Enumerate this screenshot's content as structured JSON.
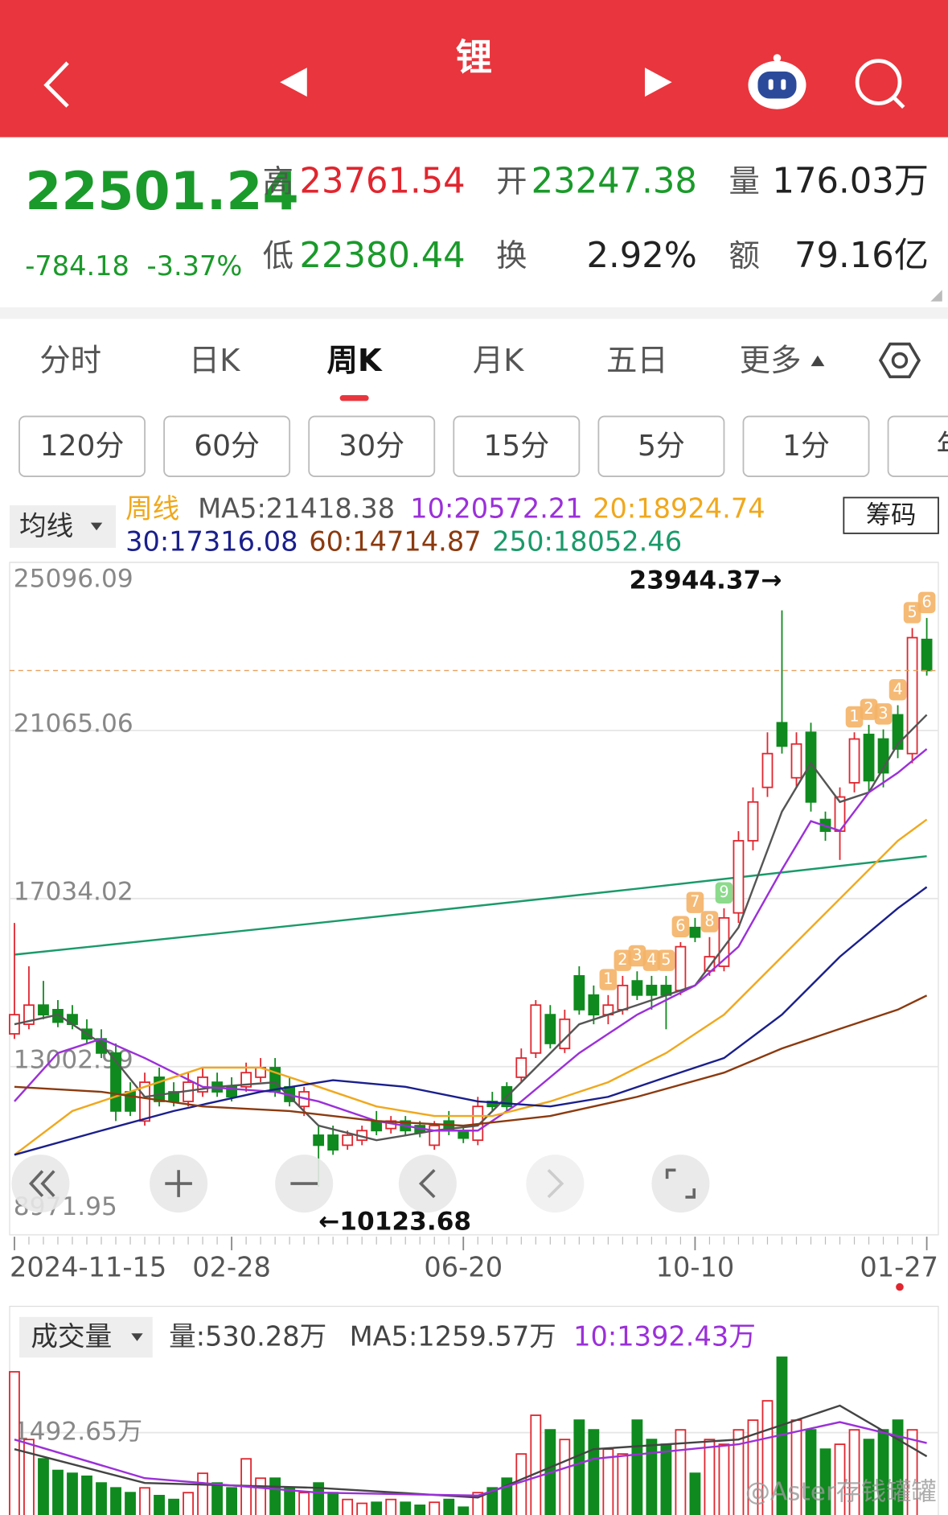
{
  "header": {
    "title": "锂"
  },
  "quote": {
    "price": "22501.24",
    "change": "-784.18",
    "change_pct": "-3.37%",
    "fields": [
      {
        "label": "高",
        "value": "23761.54"
      },
      {
        "label": "开",
        "value": "23247.38"
      },
      {
        "label": "量",
        "value": "176.03万"
      },
      {
        "label": "低",
        "value": "22380.44"
      },
      {
        "label": "换",
        "value": "2.92%"
      },
      {
        "label": "额",
        "value": "79.16亿"
      }
    ]
  },
  "tabs": [
    "分时",
    "日K",
    "周K",
    "月K",
    "五日",
    "更多"
  ],
  "intervals": [
    "120分",
    "60分",
    "30分",
    "15分",
    "5分",
    "1分",
    "年"
  ],
  "ma_panel": {
    "selector": "均线",
    "period": "周线",
    "button": "筹码"
  },
  "watermark": "@Aster存钱罐罐",
  "chart_data": [
    {
      "type": "candlestick",
      "up_color": "#e0262f",
      "down_color": "#0f8a1e",
      "xlim": [
        -0.33,
        63.8
      ],
      "ylim": [
        8971.95,
        25096.09
      ],
      "yticks": [
        25096.09,
        21065.06,
        17034.02,
        13002.99,
        8971.95
      ],
      "grid": true,
      "xticks": [
        {
          "value": 0,
          "label": "2024-11-15"
        },
        {
          "value": 15,
          "label": "02-28"
        },
        {
          "value": 31,
          "label": "06-20"
        },
        {
          "value": 47,
          "label": "10-10"
        },
        {
          "value": 63,
          "label": "01-27"
        }
      ],
      "open": [
        13790,
        14020,
        14480,
        14370,
        14250,
        13900,
        13670,
        13330,
        12400,
        11700,
        12750,
        12400,
        12170,
        12400,
        12630,
        12520,
        12520,
        12750,
        12980,
        12520,
        12050,
        11360,
        11360,
        11120,
        11240,
        11700,
        11520,
        11700,
        11590,
        11120,
        11700,
        11470,
        11240,
        12170,
        12520,
        12750,
        13330,
        14250,
        13440,
        15180,
        14720,
        14250,
        14370,
        15060,
        14950,
        14950,
        14830,
        16340,
        15300,
        15410,
        16690,
        18420,
        19700,
        21250,
        19930,
        21020,
        18930,
        18650,
        19810,
        20970,
        20860,
        21440,
        20510,
        23247.38
      ],
      "high": [
        16450,
        15410,
        15060,
        14600,
        14480,
        14140,
        13900,
        13560,
        12630,
        12860,
        12980,
        12630,
        12860,
        12980,
        12860,
        12750,
        13100,
        13210,
        13210,
        12750,
        12520,
        11590,
        11590,
        11470,
        11590,
        11940,
        11820,
        11820,
        11700,
        11700,
        11940,
        11590,
        12280,
        12400,
        12630,
        13440,
        14600,
        14480,
        14370,
        15410,
        14950,
        14720,
        15180,
        15290,
        15180,
        15180,
        15990,
        16570,
        16110,
        16800,
        18650,
        19700,
        21020,
        23944.37,
        21020,
        21250,
        19120,
        19700,
        21020,
        21200,
        21090,
        21670,
        23520,
        23761.54
      ],
      "low": [
        13670,
        13900,
        14140,
        13950,
        13900,
        13560,
        13210,
        11700,
        11820,
        11590,
        12050,
        12050,
        12050,
        12280,
        12280,
        12170,
        12400,
        12630,
        12280,
        12050,
        11820,
        10123.68,
        10890,
        11010,
        11120,
        11360,
        11400,
        11360,
        11310,
        11010,
        11360,
        11170,
        11120,
        11940,
        11940,
        12630,
        13210,
        13440,
        13330,
        14250,
        14020,
        14020,
        14250,
        14600,
        14370,
        13900,
        14720,
        15990,
        15180,
        15290,
        16450,
        18190,
        19470,
        20510,
        19700,
        19120,
        18420,
        17960,
        19580,
        19580,
        19700,
        20400,
        20280,
        22380.44
      ],
      "close": [
        14250,
        14480,
        14250,
        14070,
        14020,
        13670,
        13330,
        11940,
        11940,
        12630,
        12170,
        12170,
        12630,
        12750,
        12400,
        12280,
        12860,
        12980,
        12400,
        12170,
        12400,
        11120,
        11010,
        11360,
        11470,
        11470,
        11700,
        11470,
        11430,
        11590,
        11470,
        11290,
        12050,
        12050,
        12050,
        13210,
        14480,
        13560,
        14140,
        14370,
        14250,
        14480,
        14950,
        14720,
        14720,
        14720,
        15880,
        16110,
        15640,
        16570,
        18420,
        19350,
        20510,
        20690,
        20740,
        19350,
        18650,
        19470,
        20860,
        19860,
        20050,
        20620,
        23290,
        22501.24
      ],
      "series": [
        {
          "name": "MA5:21418.38",
          "color": "#555555",
          "x": [
            0,
            3,
            6,
            9,
            14,
            18,
            21,
            25,
            29,
            32,
            35,
            39,
            43,
            47,
            50,
            53,
            55,
            57,
            59,
            61,
            63
          ],
          "values": [
            14020,
            14250,
            13560,
            12280,
            12520,
            12630,
            11590,
            11240,
            11470,
            11590,
            12630,
            14020,
            14480,
            14950,
            16340,
            19120,
            20280,
            19350,
            19580,
            20740,
            21440
          ]
        },
        {
          "name": "10:20572.21",
          "color": "#9b30d9",
          "x": [
            0,
            3,
            6,
            9,
            13,
            18,
            21,
            25,
            29,
            32,
            35,
            39,
            43,
            47,
            50,
            53,
            55,
            57,
            59,
            61,
            63
          ],
          "values": [
            12170,
            13330,
            13670,
            13210,
            12520,
            12400,
            12170,
            11700,
            11470,
            11470,
            12170,
            13330,
            14250,
            14950,
            15880,
            17730,
            18890,
            18660,
            19580,
            20050,
            20620
          ]
        },
        {
          "name": "20:18924.74",
          "color": "#f0a81c",
          "x": [
            0,
            4,
            9,
            13,
            17,
            21,
            25,
            29,
            33,
            37,
            41,
            45,
            49,
            53,
            57,
            61,
            63
          ],
          "values": [
            10890,
            11940,
            12520,
            12980,
            12980,
            12520,
            12050,
            11820,
            11820,
            12170,
            12630,
            13330,
            14250,
            15640,
            17030,
            18420,
            18930
          ]
        },
        {
          "name": "30:17316.08",
          "color": "#1a1f8c",
          "x": [
            0,
            6,
            11,
            17,
            22,
            27,
            32,
            37,
            41,
            45,
            49,
            53,
            57,
            61,
            63
          ],
          "values": [
            10890,
            11470,
            11940,
            12400,
            12680,
            12520,
            12170,
            12050,
            12280,
            12750,
            13210,
            14250,
            15640,
            16800,
            17310
          ]
        },
        {
          "name": "60:14714.87",
          "color": "#8b3a0f",
          "x": [
            0,
            6,
            13,
            19,
            25,
            31,
            37,
            43,
            49,
            53,
            57,
            61,
            63
          ],
          "values": [
            12520,
            12400,
            12050,
            11940,
            11700,
            11590,
            11820,
            12280,
            12860,
            13440,
            13910,
            14370,
            14710
          ]
        },
        {
          "name": "250:18052.46",
          "color": "#1a9a6a",
          "x": [
            0,
            21,
            43,
            63
          ],
          "values": [
            15690,
            16450,
            17270,
            18050
          ]
        }
      ],
      "tags": [
        {
          "label": "1",
          "x": 41,
          "color": "#f4b266"
        },
        {
          "label": "2",
          "x": 42,
          "color": "#f4b266"
        },
        {
          "label": "3",
          "x": 43,
          "color": "#f4b266"
        },
        {
          "label": "4",
          "x": 44,
          "color": "#f4b266"
        },
        {
          "label": "5",
          "x": 45,
          "color": "#f4b266"
        },
        {
          "label": "6",
          "x": 46,
          "color": "#f4b266"
        },
        {
          "label": "7",
          "x": 47,
          "color": "#f4b266"
        },
        {
          "label": "8",
          "x": 48,
          "color": "#f4b266"
        },
        {
          "label": "9",
          "x": 49,
          "color": "#7fd67f"
        },
        {
          "label": "1",
          "x": 58,
          "color": "#f4b266"
        },
        {
          "label": "2",
          "x": 59,
          "color": "#f4b266"
        },
        {
          "label": "3",
          "x": 60,
          "color": "#f4b266"
        },
        {
          "label": "4",
          "x": 61,
          "color": "#f4b266"
        },
        {
          "label": "5",
          "x": 62,
          "color": "#f4b266"
        },
        {
          "label": "6",
          "x": 63,
          "color": "#f4b266"
        }
      ],
      "high_label": "23944.37→",
      "low_label": "←10123.68"
    },
    {
      "type": "bar",
      "title": "成交量",
      "volume_label": "量:530.28万",
      "ylim": [
        0,
        2240
      ],
      "yticks": [
        {
          "value": 1492.65,
          "label": "1492.65万"
        }
      ],
      "values": [
        2090,
        1425,
        1235,
        1121,
        1093,
        1064,
        998,
        950,
        903,
        950,
        874,
        836,
        903,
        1093,
        998,
        950,
        1235,
        1045,
        1045,
        950,
        903,
        998,
        903,
        836,
        798,
        808,
        836,
        808,
        779,
        808,
        836,
        760,
        903,
        950,
        1045,
        1283,
        1663,
        1520,
        1425,
        1615,
        1520,
        1330,
        1283,
        1615,
        1425,
        1378,
        1520,
        1093,
        1425,
        1378,
        1520,
        1615,
        1805,
        2233,
        1615,
        1520,
        1330,
        1378,
        1520,
        1425,
        1520,
        1615,
        1520,
        530.28
      ],
      "series": [
        {
          "name": "MA5:1259.57万",
          "color": "#444444",
          "x": [
            0,
            9,
            21,
            32,
            40,
            50,
            57,
            63
          ],
          "values": [
            1330,
            998,
            950,
            855,
            1330,
            1425,
            1758,
            1260
          ]
        },
        {
          "name": "10:1392.43万",
          "color": "#9b30d9",
          "x": [
            0,
            9,
            21,
            32,
            40,
            50,
            57,
            63
          ],
          "values": [
            1425,
            1045,
            903,
            874,
            1235,
            1378,
            1596,
            1390
          ]
        }
      ]
    }
  ]
}
